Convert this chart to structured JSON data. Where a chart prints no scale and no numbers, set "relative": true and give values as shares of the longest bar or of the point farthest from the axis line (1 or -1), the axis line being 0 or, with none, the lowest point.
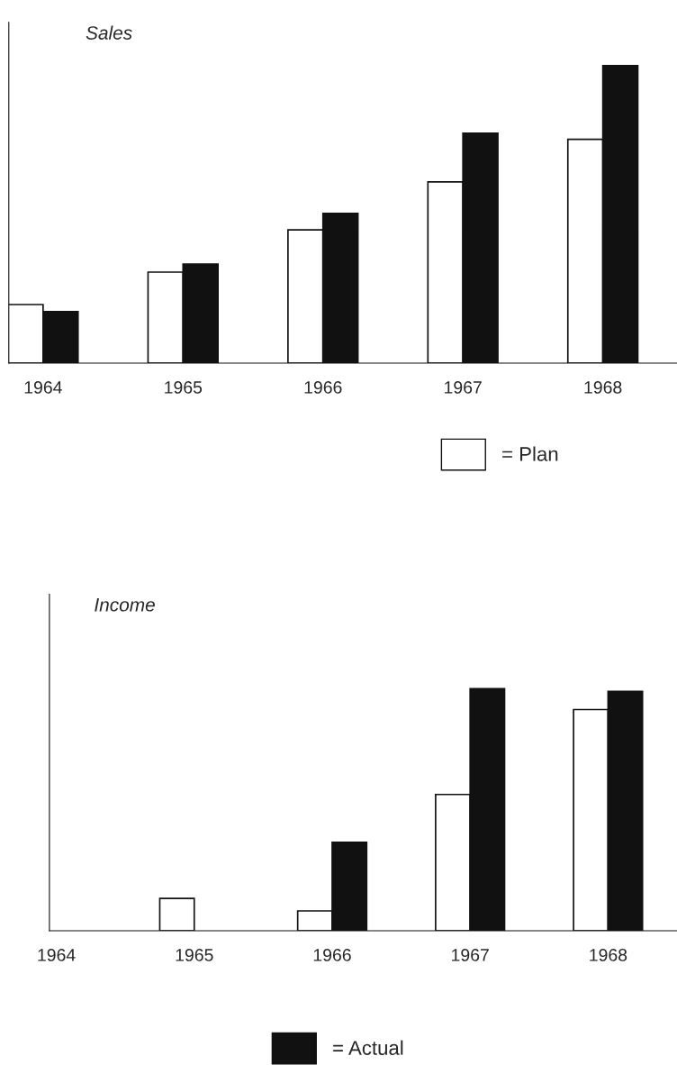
{
  "chart_data": [
    {
      "type": "bar",
      "title": "Sales",
      "relative": true,
      "categories": [
        "1964",
        "1965",
        "1966",
        "1967",
        "1968"
      ],
      "legend": "bottom right",
      "series": [
        {
          "name": "= Plan",
          "color": "#ffffff",
          "values": [
            0.197,
            0.306,
            0.448,
            0.609,
            0.752
          ]
        },
        {
          "color": "#111111",
          "values": [
            0.173,
            0.333,
            0.503,
            0.773,
            1
          ]
        }
      ]
    },
    {
      "type": "bar",
      "title": "Income",
      "relative": true,
      "categories": [
        "1964",
        "1965",
        "1966",
        "1967",
        "1968"
      ],
      "legend": "bottom",
      "series": [
        {
          "color": "#ffffff",
          "values": [
            0,
            0.134,
            0.082,
            0.563,
            0.914
          ]
        },
        {
          "name": "= Actual",
          "color": "#111111",
          "values": [
            0,
            0,
            0.366,
            1,
            0.989
          ]
        }
      ]
    }
  ]
}
